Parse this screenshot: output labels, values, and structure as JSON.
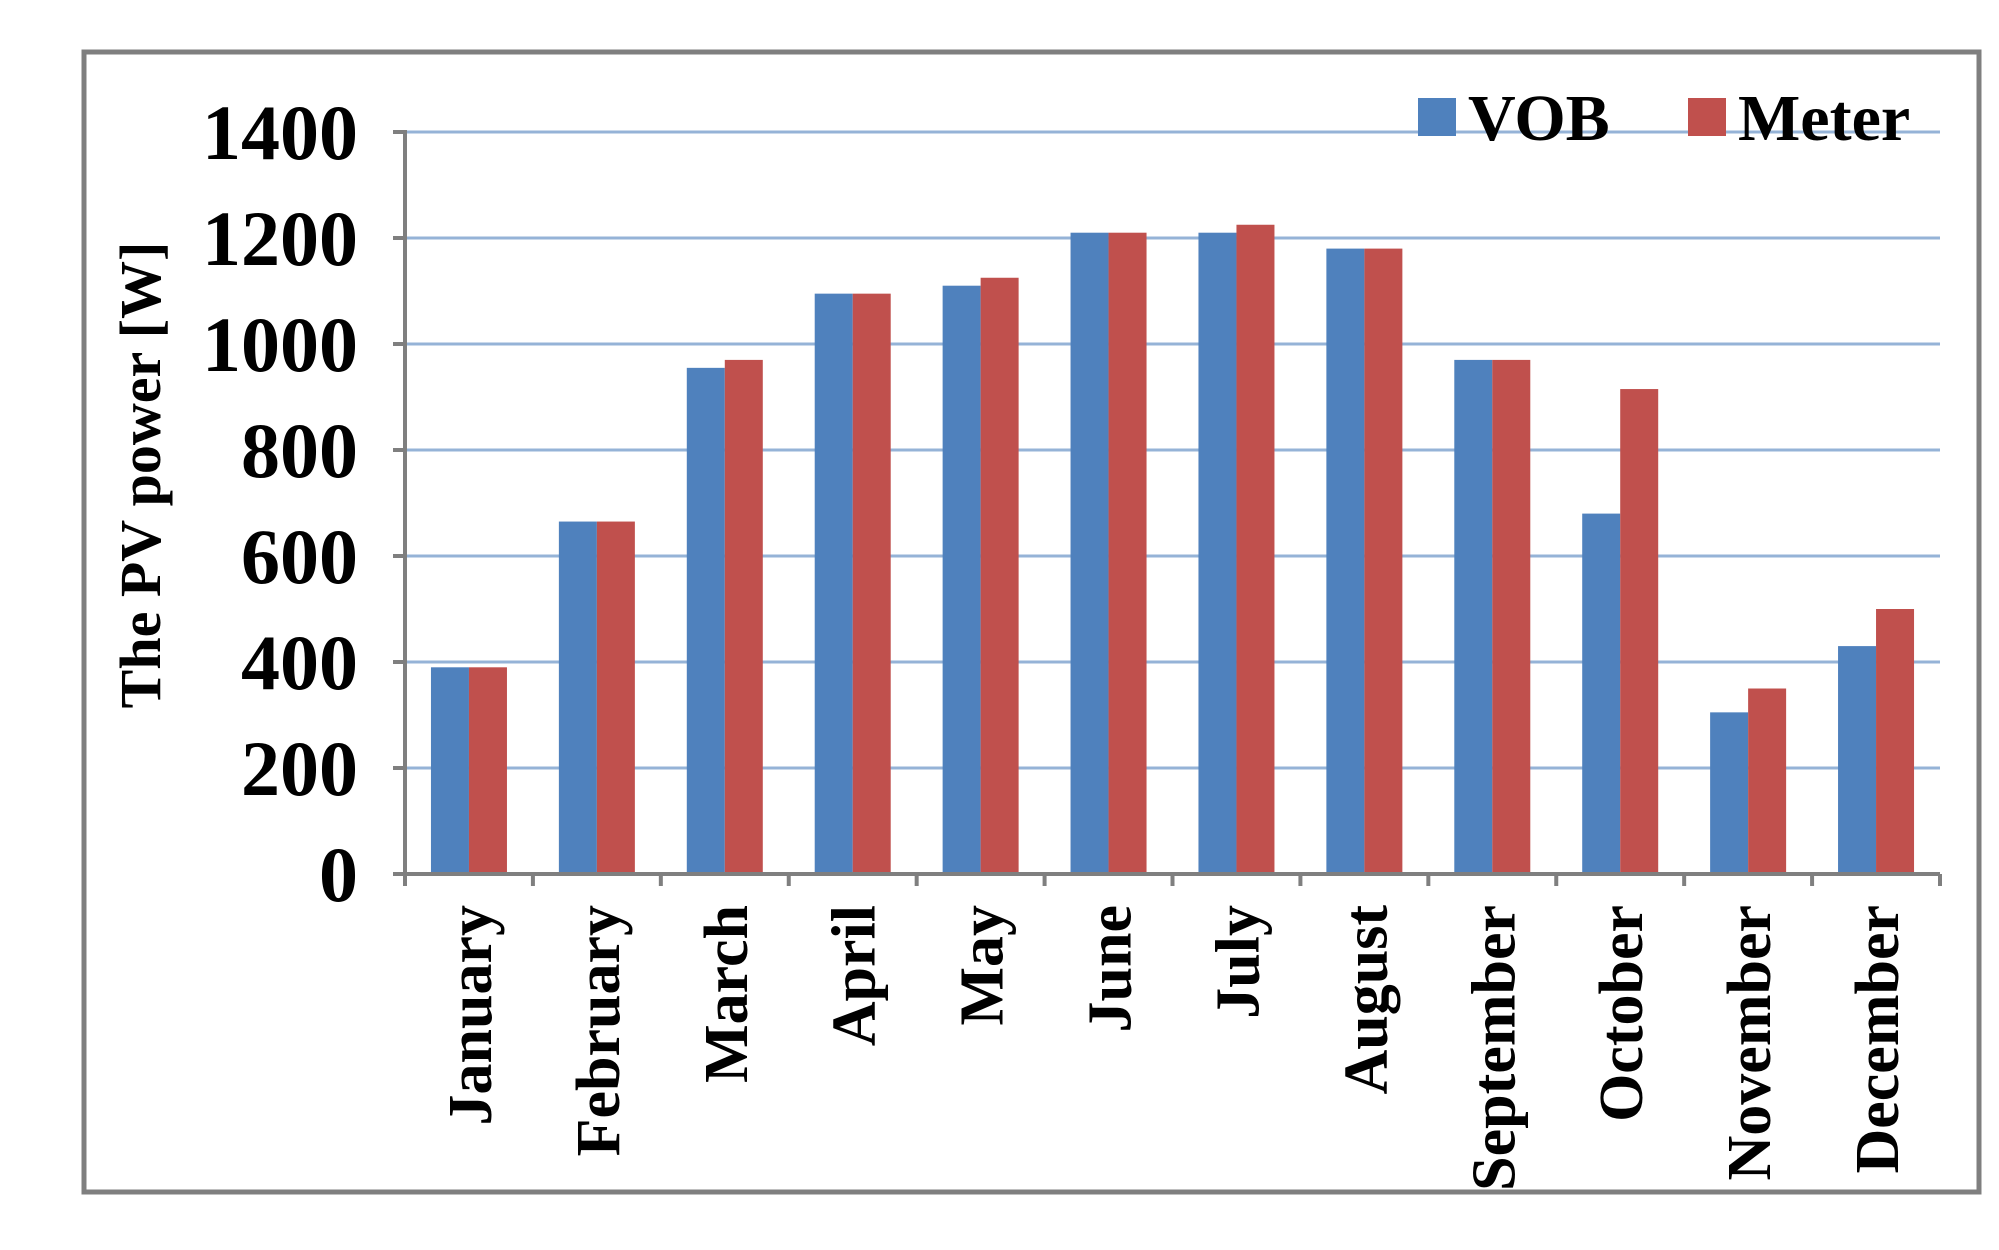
{
  "chart_data": {
    "type": "bar",
    "title": "",
    "xlabel": "",
    "ylabel": "The PV power [W]",
    "ylim": [
      0,
      1400
    ],
    "yticks": [
      0,
      200,
      400,
      600,
      800,
      1000,
      1200,
      1400
    ],
    "grid": true,
    "legend_position": "top-right",
    "categories": [
      "January",
      "February",
      "March",
      "April",
      "May",
      "June",
      "July",
      "August",
      "September",
      "October",
      "November",
      "December"
    ],
    "series": [
      {
        "name": "VOB",
        "color": "#4f81bd",
        "values": [
          390,
          665,
          955,
          1095,
          1110,
          1210,
          1210,
          1180,
          970,
          680,
          305,
          430
        ]
      },
      {
        "name": "Meter",
        "color": "#c0504d",
        "values": [
          390,
          665,
          970,
          1095,
          1125,
          1210,
          1225,
          1180,
          970,
          915,
          350,
          500
        ]
      }
    ]
  }
}
